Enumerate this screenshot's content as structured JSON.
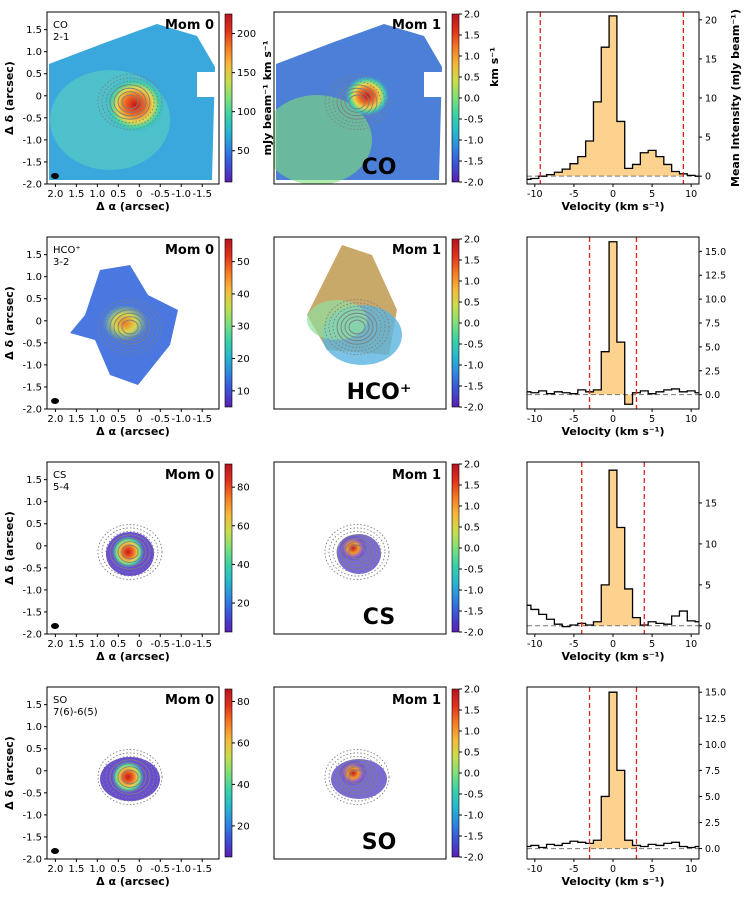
{
  "figure": {
    "mom0_label": "Mom 0",
    "mom1_label": "Mom 1",
    "ra_label": "Δ α (arcsec)",
    "dec_label": "Δ δ (arcsec)",
    "spec_xlabel": "Velocity (km s⁻¹)",
    "spec_ylabel": "Mean Intensity (mJy beam⁻¹)",
    "mom0_cbar_label": "mJy beam⁻¹ km s⁻¹",
    "mom1_cbar_label": "km s⁻¹",
    "ra_ticks": [
      "2.0",
      "1.5",
      "1.0",
      "0.5",
      "0",
      "-0.5",
      "-1.0",
      "-1.5"
    ],
    "dec_ticks": [
      "1.5",
      "1.0",
      "0.5",
      "0",
      "-0.5",
      "-1.0",
      "-1.5",
      "-2.0"
    ],
    "mom1_ticks": [
      "2.0",
      "1.5",
      "1.0",
      "0.5",
      "0.0",
      "-0.5",
      "-1.0",
      "-1.5",
      "-2.0"
    ],
    "colormap": [
      "#5a1fb0",
      "#3d4fd6",
      "#2f86e0",
      "#27b8cf",
      "#3ad3a6",
      "#7fe07a",
      "#c9dd4c",
      "#f6b83a",
      "#f47a24",
      "#e3301c",
      "#b8141f"
    ],
    "masked_color": "#ffffff",
    "contour_color": "#7f7f7f",
    "spectrum_fill": "#fdd28e",
    "window_line_color": "#e0201b"
  },
  "chart_data": [
    {
      "type": "heatmap",
      "molecule": "CO",
      "transition": "2-1",
      "big_label": "CO",
      "mom0_range": [
        10,
        225
      ],
      "mom0_ticks": [
        "200",
        "150",
        "100",
        "50"
      ],
      "mom0_tick_values": [
        200,
        150,
        100,
        50
      ],
      "mom1_range": [
        -2.0,
        2.0
      ],
      "spectrum": {
        "type": "line",
        "velocity": [
          -11,
          -10,
          -9,
          -8,
          -7,
          -6,
          -5,
          -4,
          -3,
          -2,
          -1,
          0,
          1,
          2,
          3,
          4,
          5,
          6,
          7,
          8,
          9,
          10,
          11
        ],
        "intensity": [
          -0.4,
          -0.3,
          0,
          0.2,
          0.5,
          0.9,
          1.6,
          2.5,
          4.5,
          9.5,
          16.5,
          20.5,
          7,
          1,
          1.5,
          3,
          3.3,
          2.5,
          1.5,
          0.6,
          0.3,
          0.1,
          0
        ],
        "ylim": [
          -1,
          21
        ],
        "xlim": [
          -11,
          11
        ],
        "xticks": [
          -10,
          -5,
          0,
          5,
          10
        ],
        "yticks": [
          0,
          5,
          10,
          15,
          20
        ],
        "window": [
          -9.3,
          9.0
        ]
      }
    },
    {
      "type": "heatmap",
      "molecule": "HCO⁺",
      "transition": "3-2",
      "big_label": "HCO⁺",
      "mom0_range": [
        5,
        57
      ],
      "mom0_ticks": [
        "50",
        "40",
        "30",
        "20",
        "10"
      ],
      "mom0_tick_values": [
        50,
        40,
        30,
        20,
        10
      ],
      "mom1_range": [
        -2.0,
        2.0
      ],
      "spectrum": {
        "type": "line",
        "velocity": [
          -11,
          -10,
          -9,
          -8,
          -7,
          -6,
          -5,
          -4,
          -3,
          -2,
          -1,
          0,
          1,
          2,
          3,
          4,
          5,
          6,
          7,
          8,
          9,
          10,
          11
        ],
        "intensity": [
          0.3,
          0.2,
          0.4,
          0.1,
          0.3,
          0.2,
          0.1,
          0.5,
          0.3,
          0.5,
          4.5,
          16,
          5.5,
          -1,
          0.2,
          0.4,
          0.1,
          0.3,
          0.5,
          0.6,
          0.3,
          0.4,
          0.2
        ],
        "ylim": [
          -1.5,
          16.5
        ],
        "xlim": [
          -11,
          11
        ],
        "xticks": [
          -10,
          -5,
          0,
          5,
          10
        ],
        "yticks": [
          "0.0",
          "2.5",
          "5.0",
          "7.5",
          "10.0",
          "12.5",
          "15.0"
        ],
        "window": [
          -3.0,
          3.0
        ]
      }
    },
    {
      "type": "heatmap",
      "molecule": "CS",
      "transition": "5-4",
      "big_label": "CS",
      "mom0_range": [
        5,
        92
      ],
      "mom0_ticks": [
        "80",
        "60",
        "40",
        "20"
      ],
      "mom0_tick_values": [
        80,
        60,
        40,
        20
      ],
      "mom1_range": [
        -2.0,
        2.0
      ],
      "spectrum": {
        "type": "line",
        "velocity": [
          -11,
          -10,
          -9,
          -8,
          -7,
          -6,
          -5,
          -4,
          -3,
          -2,
          -1,
          0,
          1,
          2,
          3,
          4,
          5,
          6,
          7,
          8,
          9,
          10,
          11
        ],
        "intensity": [
          2.5,
          2,
          1.4,
          0.8,
          0.2,
          -0.1,
          0.1,
          0.3,
          0.1,
          0.5,
          5,
          19,
          12,
          4.5,
          1,
          0.1,
          0.5,
          0.3,
          0.2,
          1.2,
          1.8,
          0.6,
          0.5
        ],
        "ylim": [
          -1,
          20
        ],
        "xlim": [
          -11,
          11
        ],
        "xticks": [
          -10,
          -5,
          0,
          5,
          10
        ],
        "yticks": [
          0,
          5,
          10,
          15
        ],
        "window": [
          -4.0,
          4.0
        ]
      }
    },
    {
      "type": "heatmap",
      "molecule": "SO",
      "transition": "7(6)-6(5)",
      "big_label": "SO",
      "mom0_range": [
        5,
        86
      ],
      "mom0_ticks": [
        "80",
        "60",
        "40",
        "20"
      ],
      "mom0_tick_values": [
        80,
        60,
        40,
        20
      ],
      "mom1_range": [
        -2.0,
        2.0
      ],
      "spectrum": {
        "type": "line",
        "velocity": [
          -11,
          -10,
          -9,
          -8,
          -7,
          -6,
          -5,
          -4,
          -3,
          -2,
          -1,
          0,
          1,
          2,
          3,
          4,
          5,
          6,
          7,
          8,
          9,
          10,
          11
        ],
        "intensity": [
          0.2,
          0.3,
          0.1,
          0.4,
          0.3,
          0.5,
          0.7,
          0.6,
          0.5,
          0.8,
          5,
          15,
          7.5,
          0.8,
          0.3,
          0.2,
          0.4,
          0.3,
          0.5,
          0.6,
          0.2,
          0.1,
          0.2
        ],
        "ylim": [
          -1,
          15.5
        ],
        "xlim": [
          -11,
          11
        ],
        "xticks": [
          -10,
          -5,
          0,
          5,
          10
        ],
        "yticks": [
          "0.0",
          "2.5",
          "5.0",
          "7.5",
          "10.0",
          "12.5",
          "15.0"
        ],
        "window": [
          -3.0,
          3.0
        ]
      }
    }
  ]
}
